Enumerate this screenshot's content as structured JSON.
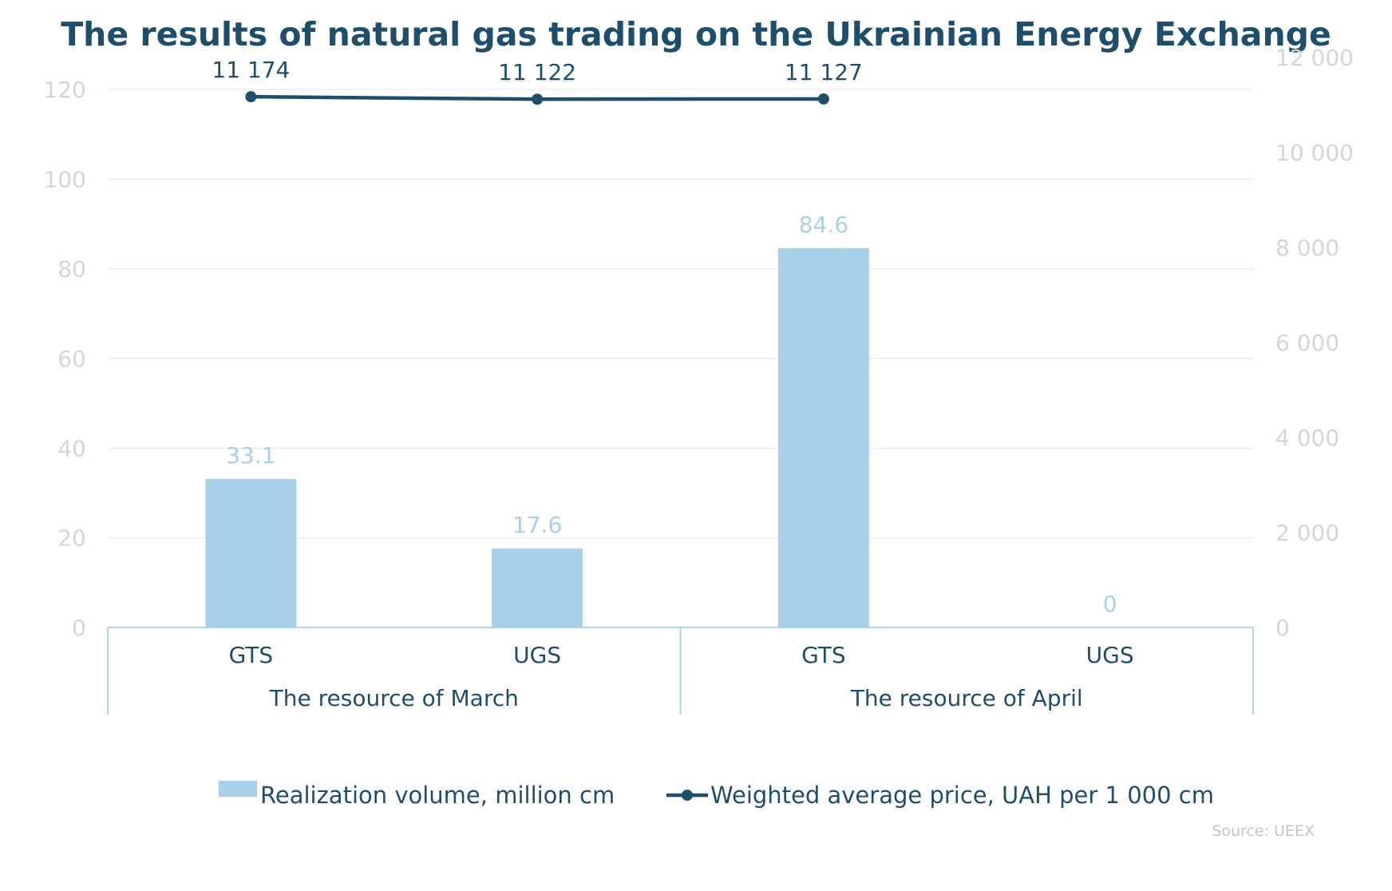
{
  "chart_data": {
    "type": "bar",
    "title": "The results of natural gas trading on the Ukrainian Energy Exchange",
    "groups": [
      {
        "label": "The resource of March",
        "categories": [
          "GTS",
          "UGS"
        ]
      },
      {
        "label": "The resource of April",
        "categories": [
          "GTS",
          "UGS"
        ]
      }
    ],
    "categories": [
      "GTS",
      "UGS",
      "GTS",
      "UGS"
    ],
    "series": [
      {
        "name": "Realization volume, million cm",
        "type": "bar",
        "axis": "left",
        "color": "#a9d0ea",
        "values": [
          33.1,
          17.6,
          84.6,
          0
        ],
        "labels": [
          "33.1",
          "17.6",
          "84.6",
          "0"
        ]
      },
      {
        "name": "Weighted average price, UAH per 1 000 cm",
        "type": "line",
        "axis": "right",
        "color": "#1f4e6b",
        "values": [
          11174,
          11122,
          11127,
          null
        ],
        "labels": [
          "11 174",
          "11 122",
          "11 127",
          null
        ]
      }
    ],
    "y_left": {
      "lim": [
        0,
        120
      ],
      "ticks": [
        0,
        20,
        40,
        60,
        80,
        100,
        120
      ],
      "tick_labels": [
        "0",
        "20",
        "40",
        "60",
        "80",
        "100",
        "120"
      ]
    },
    "y_right": {
      "lim": [
        0,
        12000
      ],
      "ticks": [
        0,
        2000,
        4000,
        6000,
        8000,
        10000,
        12000
      ],
      "tick_labels": [
        "0",
        "2 000",
        "4 000",
        "6 000",
        "8 000",
        "10 000",
        "12 000"
      ]
    },
    "grid": true,
    "legend_position": "bottom",
    "source": "Source: UEEX"
  }
}
